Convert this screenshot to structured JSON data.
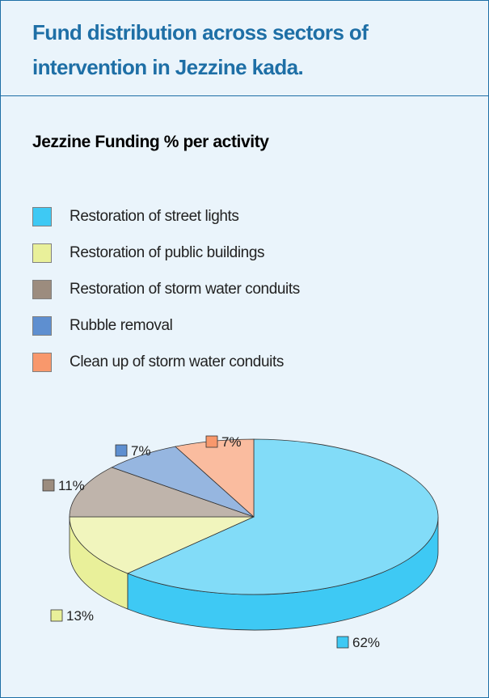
{
  "header": {
    "title": "Fund distribution across sectors of intervention in Jezzine kada.",
    "title_color": "#1e6fa6"
  },
  "chart_data": {
    "type": "pie",
    "title": "Jezzine Funding % per activity",
    "legend_position": "top",
    "categories": [
      "Restoration of street lights",
      "Restoration of public buildings",
      "Restoration of storm water conduits",
      "Rubble removal",
      "Clean up of storm water conduits"
    ],
    "values": [
      62,
      13,
      11,
      7,
      7
    ],
    "value_labels": [
      "62%",
      "13%",
      "11%",
      "7%",
      "7%"
    ],
    "colors": [
      "#3ec9f4",
      "#e9f09a",
      "#9c8c7e",
      "#5e8fd0",
      "#f8986c"
    ]
  }
}
